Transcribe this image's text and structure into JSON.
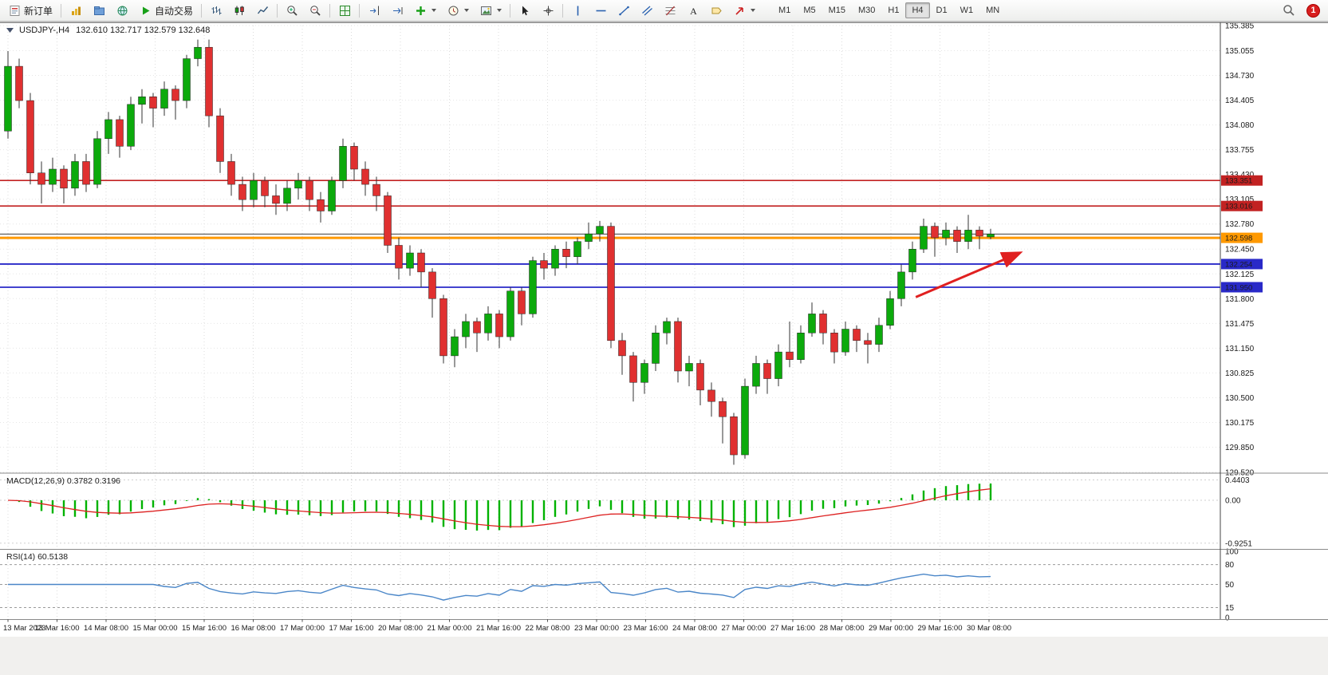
{
  "toolbar": {
    "new_order": "新订单",
    "autotrading": "自动交易",
    "timeframes": [
      "M1",
      "M5",
      "M15",
      "M30",
      "H1",
      "H4",
      "D1",
      "W1",
      "MN"
    ],
    "active_timeframe": "H4",
    "notification_count": "1"
  },
  "chart": {
    "symbol_label": "USDJPY-,H4",
    "ohlc_label": "132.610 132.717 132.579 132.648",
    "macd_label": "MACD(12,26,9) 0.3782 0.3196",
    "rsi_label": "RSI(14) 60.5138"
  },
  "chart_data": {
    "type": "candlestick",
    "title": "USDJPY-,H4",
    "timeframe": "H4",
    "price_axis": {
      "labels": [
        "135.385",
        "135.055",
        "134.730",
        "134.405",
        "134.080",
        "133.755",
        "133.430",
        "133.105",
        "132.780",
        "132.450",
        "132.125",
        "131.800",
        "131.475",
        "131.150",
        "130.825",
        "130.500",
        "130.175",
        "129.850",
        "129.520"
      ],
      "max": 135.385,
      "min": 129.52
    },
    "time_labels": [
      "13 Mar 2023",
      "13 Mar 16:00",
      "14 Mar 08:00",
      "15 Mar 00:00",
      "15 Mar 16:00",
      "16 Mar 08:00",
      "17 Mar 00:00",
      "17 Mar 16:00",
      "20 Mar 08:00",
      "21 Mar 00:00",
      "21 Mar 16:00",
      "22 Mar 08:00",
      "23 Mar 00:00",
      "23 Mar 16:00",
      "24 Mar 08:00",
      "27 Mar 00:00",
      "27 Mar 16:00",
      "28 Mar 08:00",
      "29 Mar 00:00",
      "29 Mar 16:00",
      "30 Mar 08:00"
    ],
    "ohlc": [
      [
        134.0,
        135.05,
        133.9,
        134.85
      ],
      [
        134.85,
        134.95,
        134.3,
        134.4
      ],
      [
        134.4,
        134.5,
        133.3,
        133.45
      ],
      [
        133.45,
        133.6,
        133.05,
        133.3
      ],
      [
        133.3,
        133.65,
        133.2,
        133.5
      ],
      [
        133.5,
        133.55,
        133.05,
        133.25
      ],
      [
        133.25,
        133.7,
        133.15,
        133.6
      ],
      [
        133.6,
        133.7,
        133.2,
        133.3
      ],
      [
        133.3,
        134.0,
        133.25,
        133.9
      ],
      [
        133.9,
        134.25,
        133.7,
        134.15
      ],
      [
        134.15,
        134.2,
        133.65,
        133.8
      ],
      [
        133.8,
        134.45,
        133.75,
        134.35
      ],
      [
        134.35,
        134.55,
        134.1,
        134.45
      ],
      [
        134.45,
        134.5,
        134.05,
        134.3
      ],
      [
        134.3,
        134.65,
        134.2,
        134.55
      ],
      [
        134.55,
        134.6,
        134.15,
        134.4
      ],
      [
        134.4,
        135.0,
        134.3,
        134.95
      ],
      [
        134.95,
        135.2,
        134.85,
        135.1
      ],
      [
        135.1,
        135.2,
        134.05,
        134.2
      ],
      [
        134.2,
        134.3,
        133.45,
        133.6
      ],
      [
        133.6,
        133.7,
        133.15,
        133.3
      ],
      [
        133.3,
        133.4,
        132.95,
        133.1
      ],
      [
        133.1,
        133.45,
        133.0,
        133.35
      ],
      [
        133.35,
        133.4,
        133.0,
        133.15
      ],
      [
        133.15,
        133.3,
        132.9,
        133.05
      ],
      [
        133.05,
        133.35,
        132.95,
        133.25
      ],
      [
        133.25,
        133.45,
        133.1,
        133.35
      ],
      [
        133.35,
        133.4,
        132.95,
        133.1
      ],
      [
        133.1,
        133.2,
        132.8,
        132.95
      ],
      [
        132.95,
        133.4,
        132.9,
        133.35
      ],
      [
        133.35,
        133.9,
        133.25,
        133.8
      ],
      [
        133.8,
        133.85,
        133.35,
        133.5
      ],
      [
        133.5,
        133.6,
        133.15,
        133.3
      ],
      [
        133.3,
        133.4,
        132.95,
        133.15
      ],
      [
        133.15,
        133.2,
        132.4,
        132.5
      ],
      [
        132.5,
        132.6,
        132.05,
        132.2
      ],
      [
        132.2,
        132.5,
        132.1,
        132.4
      ],
      [
        132.4,
        132.45,
        131.95,
        132.15
      ],
      [
        132.15,
        132.2,
        131.55,
        131.8
      ],
      [
        131.8,
        131.85,
        130.95,
        131.05
      ],
      [
        131.05,
        131.4,
        130.9,
        131.3
      ],
      [
        131.3,
        131.6,
        131.15,
        131.5
      ],
      [
        131.5,
        131.55,
        131.1,
        131.35
      ],
      [
        131.35,
        131.7,
        131.25,
        131.6
      ],
      [
        131.6,
        131.65,
        131.15,
        131.3
      ],
      [
        131.3,
        131.95,
        131.25,
        131.9
      ],
      [
        131.9,
        131.95,
        131.45,
        131.6
      ],
      [
        131.6,
        132.35,
        131.55,
        132.3
      ],
      [
        132.3,
        132.4,
        132.05,
        132.2
      ],
      [
        132.2,
        132.5,
        132.1,
        132.45
      ],
      [
        132.45,
        132.55,
        132.2,
        132.35
      ],
      [
        132.35,
        132.6,
        132.25,
        132.55
      ],
      [
        132.55,
        132.8,
        132.45,
        132.65
      ],
      [
        132.65,
        132.82,
        132.55,
        132.75
      ],
      [
        132.75,
        132.8,
        131.15,
        131.25
      ],
      [
        131.25,
        131.35,
        130.8,
        131.05
      ],
      [
        131.05,
        131.1,
        130.45,
        130.7
      ],
      [
        130.7,
        131.0,
        130.55,
        130.95
      ],
      [
        130.95,
        131.45,
        130.85,
        131.35
      ],
      [
        131.35,
        131.55,
        131.2,
        131.5
      ],
      [
        131.5,
        131.55,
        130.7,
        130.85
      ],
      [
        130.85,
        131.05,
        130.65,
        130.95
      ],
      [
        130.95,
        131.0,
        130.4,
        130.6
      ],
      [
        130.6,
        130.7,
        130.25,
        130.45
      ],
      [
        130.45,
        130.5,
        129.9,
        130.25
      ],
      [
        130.25,
        130.3,
        129.62,
        129.75
      ],
      [
        129.75,
        130.75,
        129.7,
        130.65
      ],
      [
        130.65,
        131.05,
        130.55,
        130.95
      ],
      [
        130.95,
        131.0,
        130.55,
        130.75
      ],
      [
        130.75,
        131.2,
        130.65,
        131.1
      ],
      [
        131.1,
        131.5,
        130.9,
        131.0
      ],
      [
        131.0,
        131.45,
        130.95,
        131.35
      ],
      [
        131.35,
        131.75,
        131.3,
        131.6
      ],
      [
        131.6,
        131.65,
        131.2,
        131.35
      ],
      [
        131.35,
        131.4,
        130.95,
        131.1
      ],
      [
        131.1,
        131.5,
        131.05,
        131.4
      ],
      [
        131.4,
        131.45,
        131.1,
        131.25
      ],
      [
        131.25,
        131.35,
        130.95,
        131.2
      ],
      [
        131.2,
        131.55,
        131.1,
        131.45
      ],
      [
        131.45,
        131.9,
        131.4,
        131.8
      ],
      [
        131.8,
        132.25,
        131.7,
        132.15
      ],
      [
        132.15,
        132.55,
        132.05,
        132.45
      ],
      [
        132.45,
        132.85,
        132.4,
        132.75
      ],
      [
        132.75,
        132.8,
        132.35,
        132.6
      ],
      [
        132.6,
        132.8,
        132.5,
        132.7
      ],
      [
        132.7,
        132.75,
        132.4,
        132.55
      ],
      [
        132.55,
        132.9,
        132.45,
        132.7
      ],
      [
        132.7,
        132.75,
        132.45,
        132.62
      ],
      [
        132.61,
        132.717,
        132.579,
        132.648
      ]
    ],
    "hlines": [
      {
        "price": 133.351,
        "label": "133.351",
        "color": "#c22222",
        "width": 1.6,
        "text_color": "#ffffff"
      },
      {
        "price": 133.016,
        "label": "133.016",
        "color": "#c22222",
        "width": 1.6,
        "text_color": "#ffffff"
      },
      {
        "price": 132.598,
        "label": "132.598",
        "color": "#ff9900",
        "width": 3,
        "text_color": "#000000"
      },
      {
        "price": 132.254,
        "label": "132.254",
        "color": "#2929c8",
        "width": 1.8,
        "text_color": "#ffffff"
      },
      {
        "price": 131.95,
        "label": "131.950",
        "color": "#2929c8",
        "width": 1.8,
        "text_color": "#ffffff"
      }
    ],
    "bid_line": {
      "price": 132.648,
      "color": "#222222"
    },
    "trend_arrow": {
      "from": {
        "bar": 81.3,
        "price": 131.82
      },
      "to": {
        "bar": 90.6,
        "price": 132.4
      },
      "color": "#e02020"
    },
    "macd": {
      "params": "12,26,9",
      "value": 0.3782,
      "signal_value": 0.3196,
      "levels": [
        0.4403,
        0.0,
        -0.9251
      ],
      "level_labels": [
        "0.4403",
        "0.00",
        "-0.9251"
      ]
    },
    "rsi": {
      "period": 14,
      "value": 60.5138,
      "levels": [
        100,
        80,
        50,
        15,
        0
      ],
      "level_labels": [
        "100",
        "80",
        "50",
        "15",
        "0"
      ],
      "dashed_levels": [
        80,
        50,
        15
      ]
    },
    "colors": {
      "up": "#0caa0c",
      "down": "#e03030",
      "wick": "#333333",
      "macd_hist": "#00b200",
      "macd_signal": "#dd2222",
      "rsi_line": "#4a86c8",
      "grid": "#dcdcdc",
      "panel_border": "#8a8a8a",
      "axis_border": "#444444"
    }
  }
}
